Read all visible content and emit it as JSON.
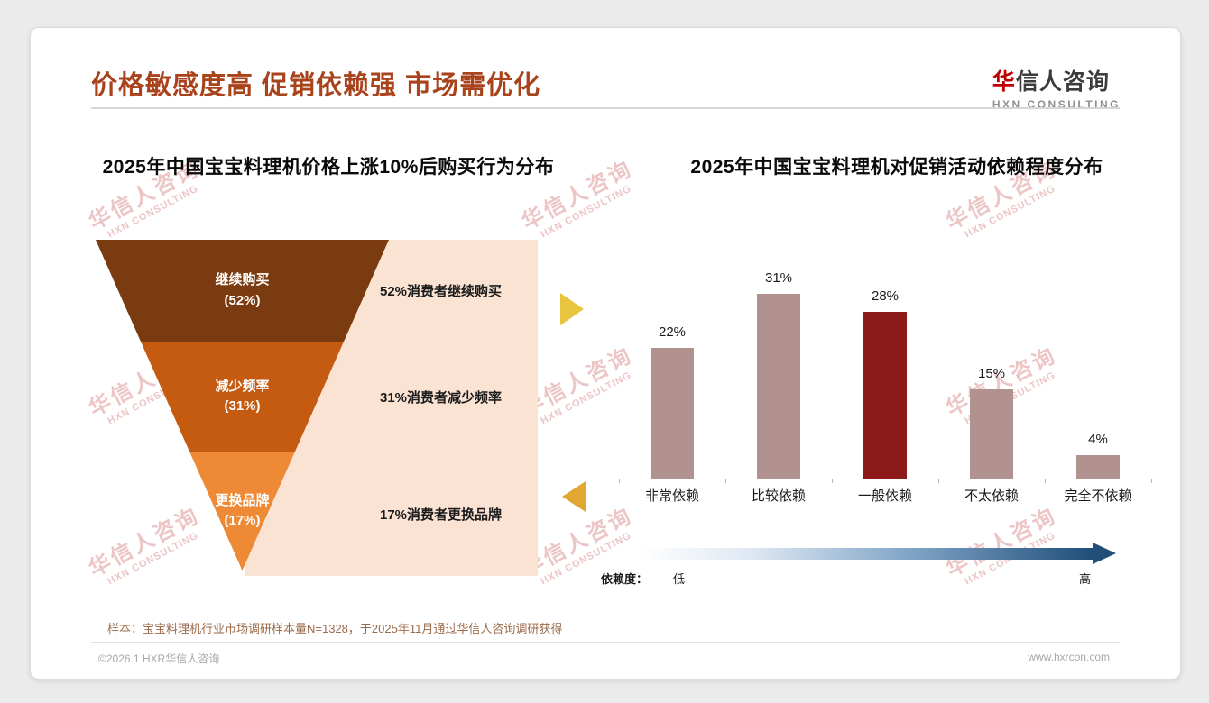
{
  "slide": {
    "title": "价格敏感度高 促销依赖强 市场需优化",
    "title_color": "#A8431C",
    "logo": {
      "zh_first": "华",
      "zh_rest": "信人咨询",
      "en": "HXN CONSULTING"
    },
    "footnote": "样本：宝宝料理机行业市场调研样本量N=1328，于2025年11月通过华信人咨询调研获得",
    "footer_left": "©2026.1 HXR华信人咨询",
    "footer_right": "www.hxrcon.com"
  },
  "watermark": {
    "zh": "华信人咨询",
    "en": "HXN CONSULTING"
  },
  "funnel": {
    "title": "2025年中国宝宝料理机价格上涨10%后购买行为分布",
    "panel_color": "#FBE3D4",
    "segments": [
      {
        "label": "继续购买",
        "pct": "(52%)",
        "desc": "52%消费者继续购买",
        "color": "#7B3B10"
      },
      {
        "label": "减少频率",
        "pct": "(31%)",
        "desc": "31%消费者减少频率",
        "color": "#C55A11"
      },
      {
        "label": "更换品牌",
        "pct": "(17%)",
        "desc": "17%消费者更换品牌",
        "color": "#EE8A35"
      }
    ]
  },
  "bars": {
    "title": "2025年中国宝宝料理机对促销活动依赖程度分布",
    "bar_color": "#B2928E",
    "highlight_index": 2,
    "highlight_color": "#8C1A1A",
    "items": [
      {
        "category": "非常依赖",
        "value": 22,
        "label": "22%"
      },
      {
        "category": "比较依赖",
        "value": 31,
        "label": "31%"
      },
      {
        "category": "一般依赖",
        "value": 28,
        "label": "28%"
      },
      {
        "category": "不太依赖",
        "value": 15,
        "label": "15%"
      },
      {
        "category": "完全不依赖",
        "value": 4,
        "label": "4%"
      }
    ],
    "axis_caption": "依赖度：",
    "axis_low": "低",
    "axis_high": "高",
    "gradient_start": "#FFFFFF",
    "gradient_end": "#1F4E79"
  },
  "arrows": {
    "right_color": "#E8C43F",
    "left_color": "#E2A733"
  },
  "chart_data": [
    {
      "type": "funnel",
      "title": "2025年中国宝宝料理机价格上涨10%后购买行为分布",
      "categories": [
        "继续购买",
        "减少频率",
        "更换品牌"
      ],
      "values": [
        52,
        31,
        17
      ],
      "annotations": [
        "52%消费者继续购买",
        "31%消费者减少频率",
        "17%消费者更换品牌"
      ],
      "legend_position": "none"
    },
    {
      "type": "bar",
      "title": "2025年中国宝宝料理机对促销活动依赖程度分布",
      "categories": [
        "非常依赖",
        "比较依赖",
        "一般依赖",
        "不太依赖",
        "完全不依赖"
      ],
      "values": [
        22,
        31,
        28,
        15,
        4
      ],
      "data_labels": [
        "22%",
        "31%",
        "28%",
        "15%",
        "4%"
      ],
      "ylim": [
        0,
        35
      ],
      "grid": false,
      "legend_position": "none",
      "highlight": {
        "index": 2,
        "color": "#8C1A1A"
      },
      "xlabel": "依赖度（低 → 高）",
      "ylabel": ""
    }
  ]
}
